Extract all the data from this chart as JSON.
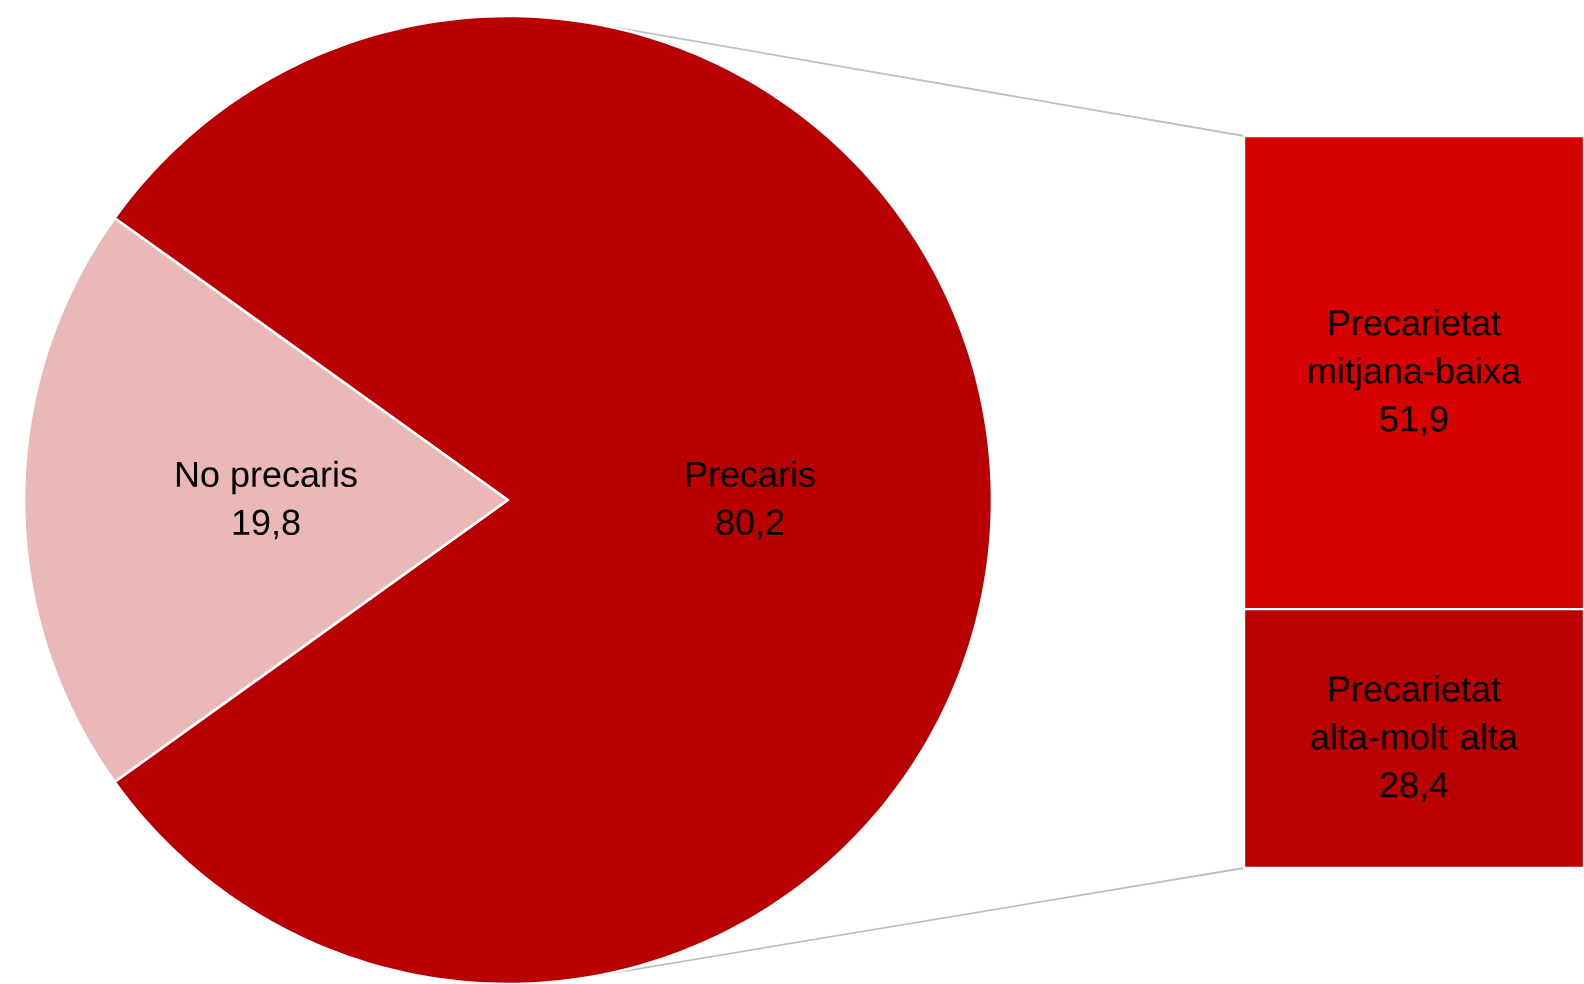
{
  "chart_data": [
    {
      "type": "pie",
      "categories": [
        "No precaris",
        "Precaris"
      ],
      "values": [
        19.8,
        80.2
      ],
      "colors": [
        "#ebb8b8",
        "#b90000"
      ],
      "value_labels": [
        "19,8",
        "80,2"
      ]
    },
    {
      "type": "bar",
      "stacked": true,
      "categories": [
        null
      ],
      "series": [
        {
          "name": "Precarietat alta-molt alta",
          "color": "#ba0000",
          "values": [
            28.4
          ],
          "value_labels": [
            "28,4"
          ]
        },
        {
          "name": "Precarietat mitjana-baixa",
          "color": "#d60000",
          "values": [
            51.9
          ],
          "value_labels": [
            "51,9"
          ]
        }
      ]
    }
  ]
}
